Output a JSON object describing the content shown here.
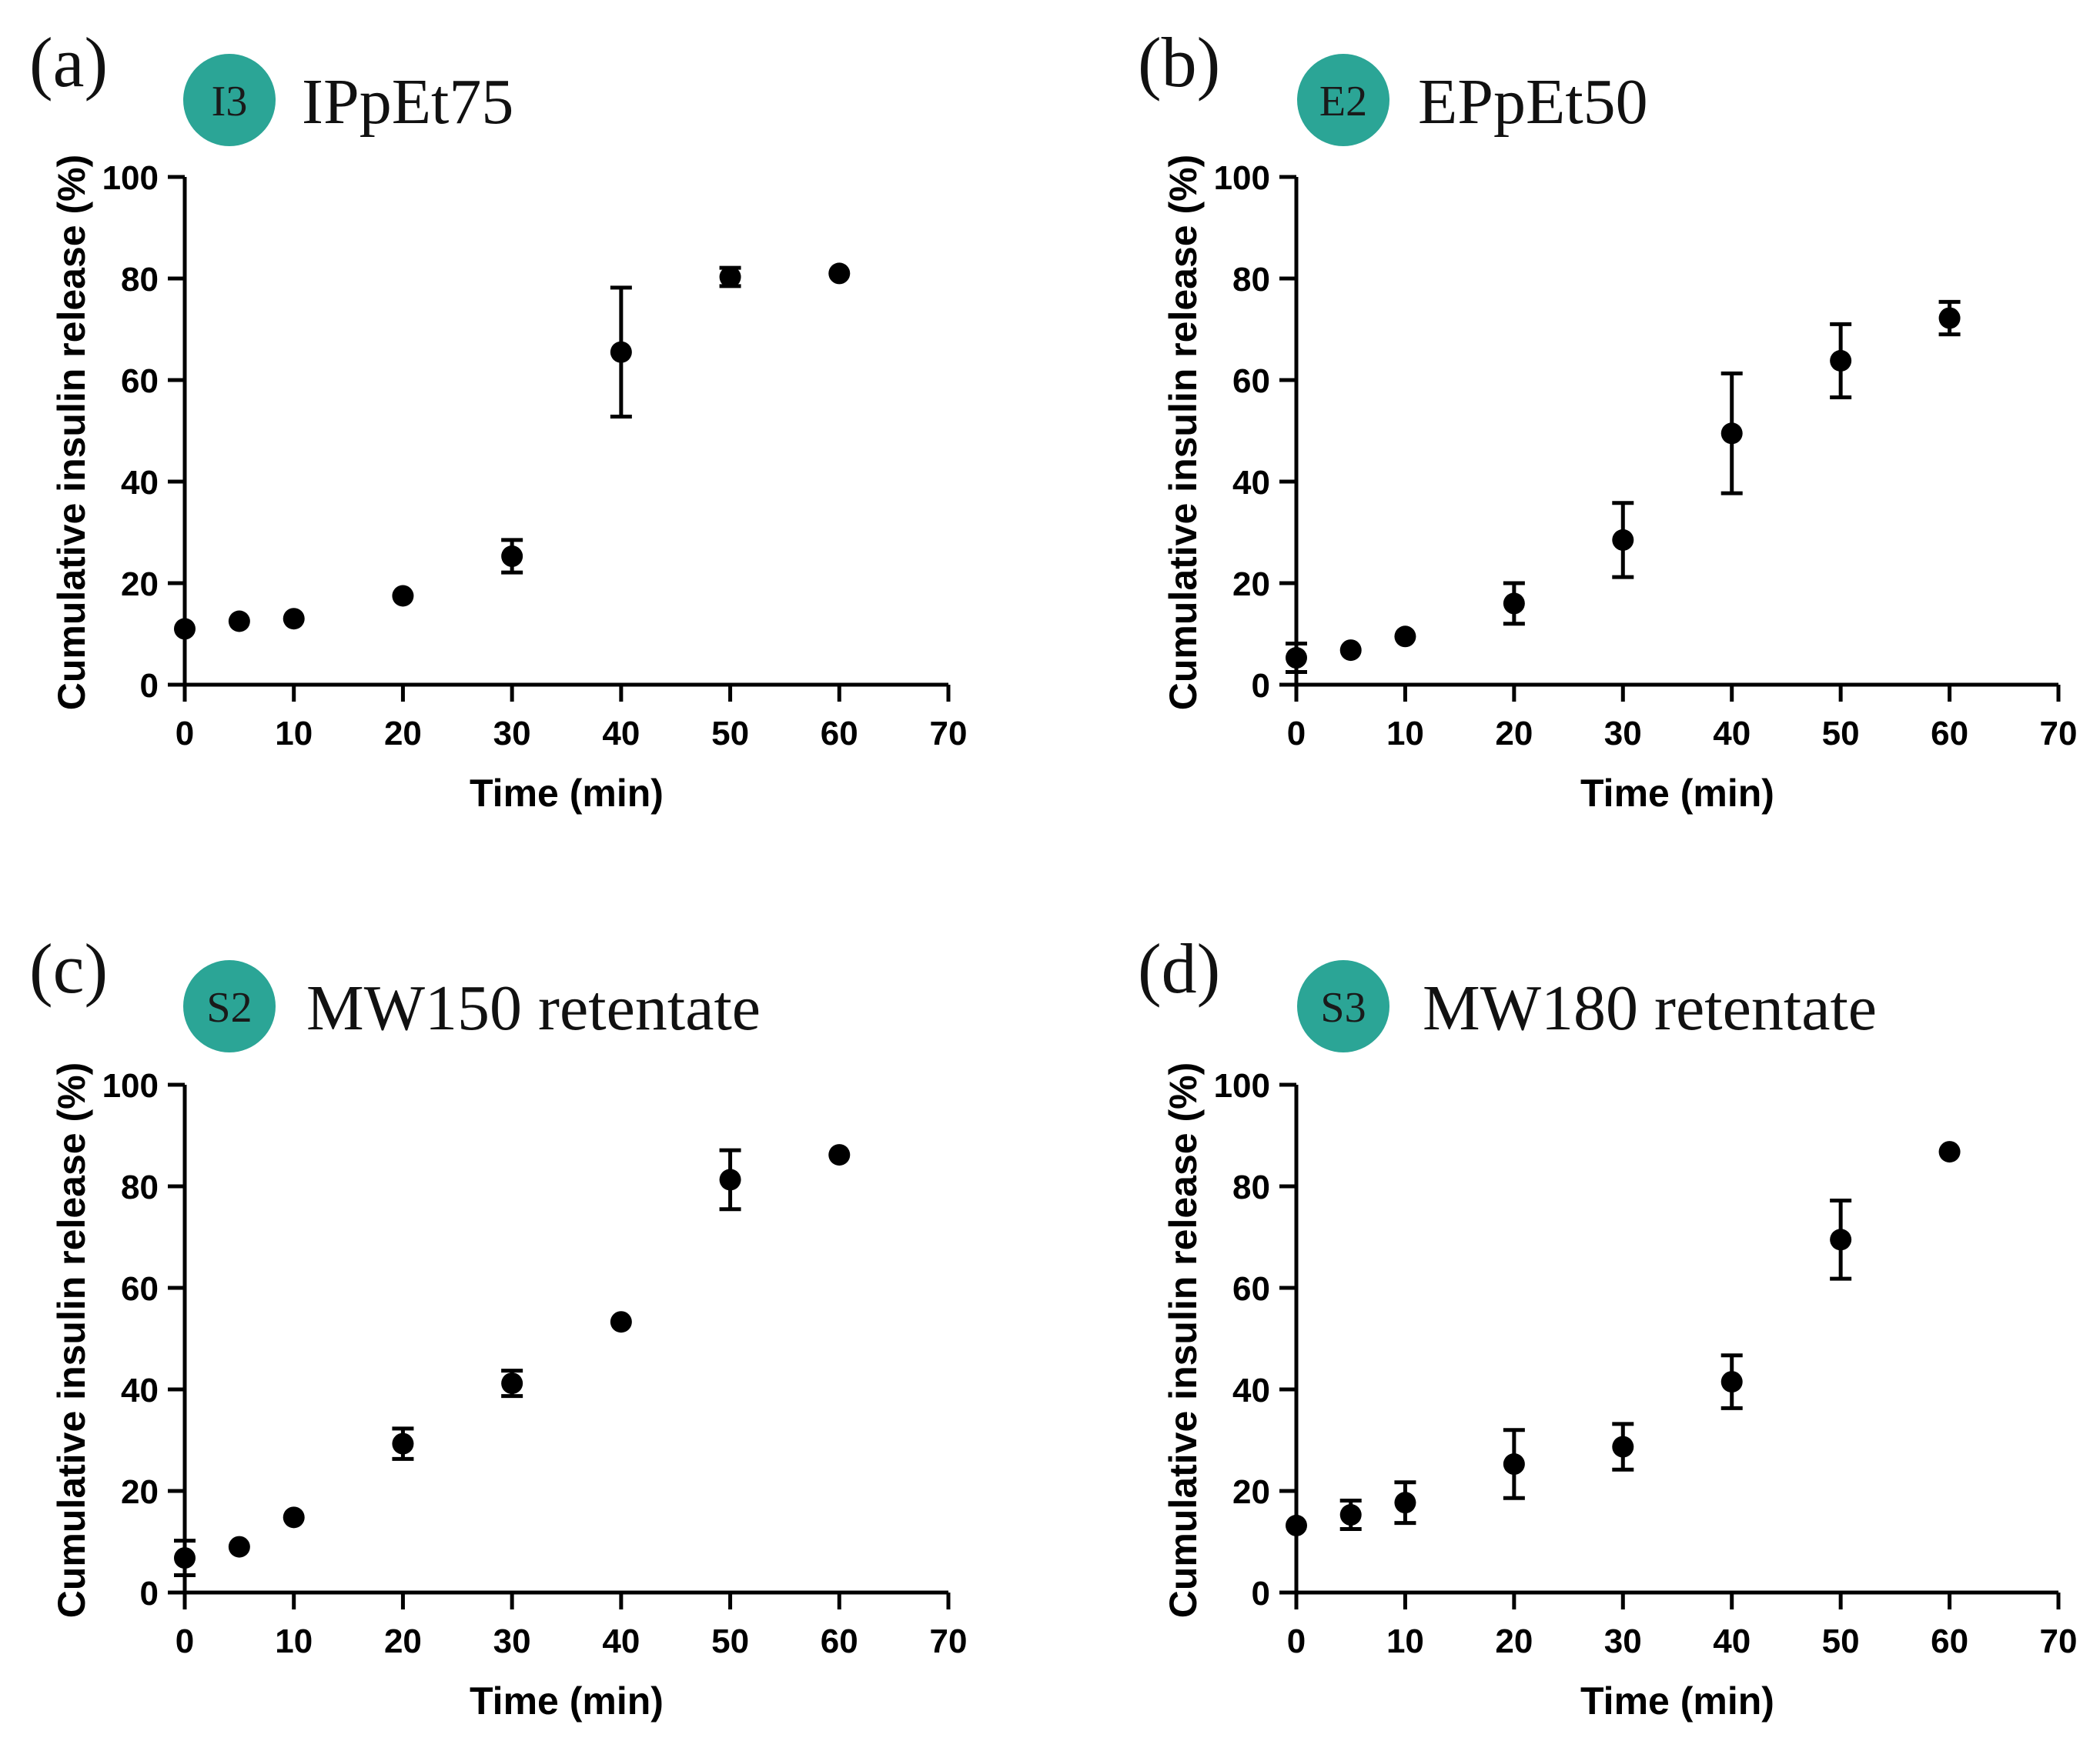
{
  "accent_color": "#2ba596",
  "chart_data": [
    {
      "type": "scatter",
      "panel": "(a)",
      "badge": "I3",
      "title": "IPpEt75",
      "xlabel": "Time (min)",
      "ylabel": "Cumulative insulin release (%)",
      "xlim": [
        0,
        70
      ],
      "ylim": [
        0,
        100
      ],
      "xticks": [
        0,
        10,
        20,
        30,
        40,
        50,
        60,
        70
      ],
      "yticks": [
        0,
        20,
        40,
        60,
        80,
        100
      ],
      "grid": false,
      "x": [
        0,
        5,
        10,
        20,
        30,
        40,
        50,
        60
      ],
      "y": [
        11,
        12.5,
        13,
        17.5,
        25.3,
        65.5,
        80.3,
        81
      ],
      "err": [
        0,
        0,
        0,
        0,
        3.2,
        12.7,
        1.8,
        0
      ]
    },
    {
      "type": "scatter",
      "panel": "(b)",
      "badge": "E2",
      "title": "EPpEt50",
      "xlabel": "Time (min)",
      "ylabel": "Cumulative insulin release (%)",
      "xlim": [
        0,
        70
      ],
      "ylim": [
        0,
        100
      ],
      "xticks": [
        0,
        10,
        20,
        30,
        40,
        50,
        60,
        70
      ],
      "yticks": [
        0,
        20,
        40,
        60,
        80,
        100
      ],
      "grid": false,
      "x": [
        0,
        5,
        10,
        20,
        30,
        40,
        50,
        60
      ],
      "y": [
        5.3,
        6.8,
        9.5,
        16,
        28.5,
        49.5,
        63.8,
        72.2
      ],
      "err": [
        2.8,
        0,
        0,
        4,
        7.3,
        11.8,
        7.2,
        3.2
      ]
    },
    {
      "type": "scatter",
      "panel": "(c)",
      "badge": "S2",
      "title": "MW150 retentate",
      "xlabel": "Time (min)",
      "ylabel": "Cumulative insulin release (%)",
      "xlim": [
        0,
        70
      ],
      "ylim": [
        0,
        100
      ],
      "xticks": [
        0,
        10,
        20,
        30,
        40,
        50,
        60,
        70
      ],
      "yticks": [
        0,
        20,
        40,
        60,
        80,
        100
      ],
      "grid": false,
      "x": [
        0,
        5,
        10,
        20,
        30,
        40,
        50,
        60
      ],
      "y": [
        6.8,
        9,
        14.8,
        29.3,
        41.2,
        53.3,
        81.3,
        86.2
      ],
      "err": [
        3.4,
        0,
        0,
        3,
        2.5,
        0,
        5.8,
        0
      ]
    },
    {
      "type": "scatter",
      "panel": "(d)",
      "badge": "S3",
      "title": "MW180 retentate",
      "xlabel": "Time (min)",
      "ylabel": "Cumulative insulin release (%)",
      "xlim": [
        0,
        70
      ],
      "ylim": [
        0,
        100
      ],
      "xticks": [
        0,
        10,
        20,
        30,
        40,
        50,
        60,
        70
      ],
      "yticks": [
        0,
        20,
        40,
        60,
        80,
        100
      ],
      "grid": false,
      "x": [
        0,
        5,
        10,
        20,
        30,
        40,
        50,
        60
      ],
      "y": [
        13.2,
        15.3,
        17.7,
        25.3,
        28.7,
        41.5,
        69.5,
        86.8
      ],
      "err": [
        0,
        2.8,
        4,
        6.7,
        4.5,
        5.2,
        7.7,
        0
      ]
    }
  ]
}
